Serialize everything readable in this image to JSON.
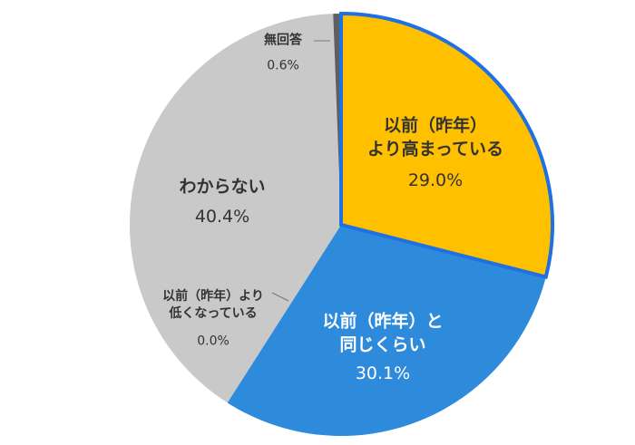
{
  "chart_data": {
    "type": "pie",
    "categories": [
      "以前（昨年）\nより高まっている",
      "以前（昨年）と\n同じくらい",
      "以前（昨年）より\n低くなっている",
      "わからない",
      "無回答"
    ],
    "values": [
      29.0,
      30.1,
      0.0,
      40.4,
      0.6
    ],
    "value_labels": [
      "29.0%",
      "30.1%",
      "0.0%",
      "40.4%",
      "0.6%"
    ],
    "colors": [
      "#ffc000",
      "#2e8bdc",
      "#c9c9c9",
      "#c9c9c9",
      "#5f5f5f"
    ],
    "highlight_color": "#1f6fe5"
  }
}
